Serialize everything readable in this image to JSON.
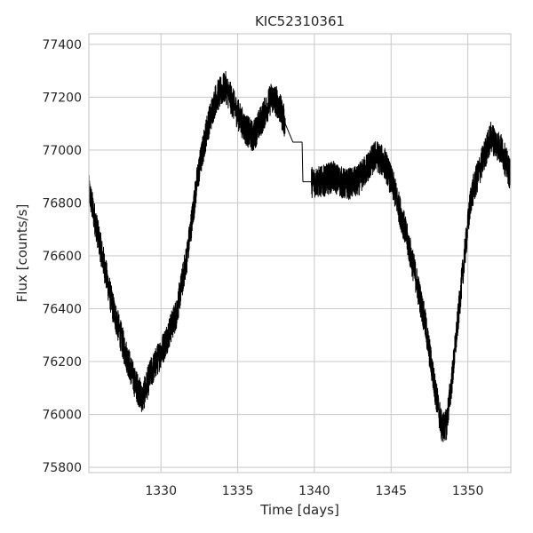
{
  "chart_data": {
    "type": "line",
    "title": "KIC52310361",
    "xlabel": "Time [days]",
    "ylabel": "Flux [counts/s]",
    "xlim": [
      1325.3,
      1352.8
    ],
    "ylim": [
      75780,
      77440
    ],
    "xticks": [
      1330,
      1335,
      1340,
      1345,
      1350
    ],
    "yticks": [
      75800,
      76000,
      76200,
      76400,
      76600,
      76800,
      77000,
      77200,
      77400
    ],
    "grid": true,
    "line_color": "#000000",
    "noise_amplitude": 60,
    "series": [
      {
        "x": [
          1325.3,
          1326.0,
          1326.8,
          1327.6,
          1328.3,
          1328.8,
          1329.3,
          1330.2,
          1331.0,
          1331.7,
          1332.4,
          1333.0,
          1333.6,
          1334.2,
          1334.9,
          1335.5,
          1336.0,
          1336.6,
          1337.2,
          1337.6,
          1338.1,
          1338.6,
          1339.2,
          1339.25,
          1339.8,
          1340.5,
          1341.2,
          1342.0,
          1342.8,
          1343.4,
          1344.0,
          1344.6,
          1345.2,
          1345.9,
          1346.6,
          1347.2,
          1347.8,
          1348.3,
          1348.6,
          1349.0,
          1349.6,
          1350.2,
          1350.9,
          1351.5,
          1352.2,
          1352.8
        ],
        "y": [
          76850,
          76650,
          76420,
          76250,
          76120,
          76060,
          76150,
          76260,
          76380,
          76600,
          76900,
          77080,
          77200,
          77240,
          77150,
          77080,
          77050,
          77120,
          77200,
          77180,
          77100,
          77030,
          77030,
          76880,
          76880,
          76880,
          76900,
          76870,
          76880,
          76930,
          76980,
          76950,
          76850,
          76700,
          76520,
          76350,
          76120,
          75950,
          75960,
          76150,
          76500,
          76820,
          76950,
          77050,
          77000,
          76900
        ]
      }
    ]
  }
}
